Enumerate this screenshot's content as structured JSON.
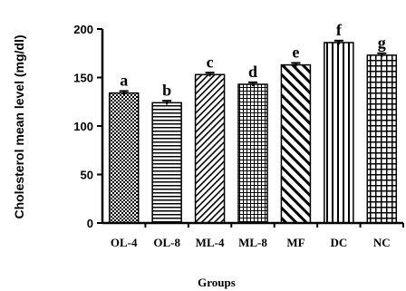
{
  "chart_data": {
    "type": "bar",
    "categories": [
      "OL-4",
      "OL-8",
      "ML-4",
      "ML-8",
      "MF",
      "DC",
      "NC"
    ],
    "values": [
      134,
      124,
      153,
      143,
      163,
      186,
      173
    ],
    "errors": [
      2,
      2,
      2,
      2,
      2,
      2,
      2
    ],
    "letters": [
      "a",
      "b",
      "c",
      "d",
      "e",
      "f",
      "g"
    ],
    "patterns": [
      "checker",
      "hlines",
      "diag-left",
      "grid",
      "diag-right",
      "vlines",
      "grid-coarse"
    ],
    "xlabel": "Groups",
    "ylabel": "Cholesterol mean level (mg/dl)",
    "ylim": [
      0,
      200
    ],
    "yticks": [
      "0",
      "50",
      "100",
      "150",
      "200"
    ],
    "grid": false,
    "legend": "none"
  }
}
